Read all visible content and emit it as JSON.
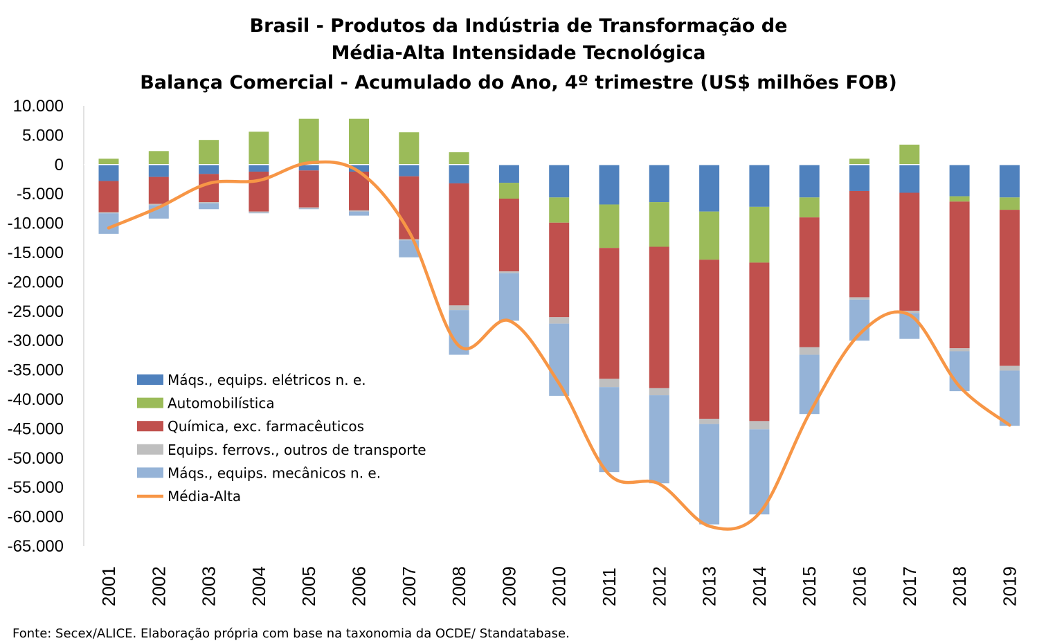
{
  "chart_data": {
    "type": "bar",
    "stacked": true,
    "title": [
      "Brasil - Produtos da Indústria de Transformação de",
      "Média-Alta Intensidade Tecnológica",
      "Balança Comercial - Acumulado do Ano, 4º trimestre (US$ milhões FOB)"
    ],
    "source": "Fonte: Secex/ALICE. Elaboração própria com base na taxonomia da OCDE/ Standatabase.",
    "categories": [
      "2001",
      "2002",
      "2003",
      "2004",
      "2005",
      "2006",
      "2007",
      "2008",
      "2009",
      "2010",
      "2011",
      "2012",
      "2013",
      "2014",
      "2015",
      "2016",
      "2017",
      "2018",
      "2019"
    ],
    "ylim": [
      -65000,
      10000
    ],
    "yticks": [
      {
        "value": 10000,
        "label": "10.000"
      },
      {
        "value": 5000,
        "label": "5.000"
      },
      {
        "value": 0,
        "label": "0"
      },
      {
        "value": -5000,
        "label": "-5.000"
      },
      {
        "value": -10000,
        "label": "-10.000"
      },
      {
        "value": -15000,
        "label": "-15.000"
      },
      {
        "value": -20000,
        "label": "-20.000"
      },
      {
        "value": -25000,
        "label": "-25.000"
      },
      {
        "value": -30000,
        "label": "-30.000"
      },
      {
        "value": -35000,
        "label": "-35.000"
      },
      {
        "value": -40000,
        "label": "-40.000"
      },
      {
        "value": -45000,
        "label": "-45.000"
      },
      {
        "value": -50000,
        "label": "-50.000"
      },
      {
        "value": -55000,
        "label": "-55.000"
      },
      {
        "value": -60000,
        "label": "-60.000"
      },
      {
        "value": -65000,
        "label": "-65.000"
      }
    ],
    "grid": false,
    "legend_position": "bottom-left",
    "series": [
      {
        "name": "Máqs., equips. elétricos n. e.",
        "type": "bar",
        "color": "#4f81bd",
        "values": [
          -2800,
          -2100,
          -1600,
          -1200,
          -1000,
          -1200,
          -2000,
          -3200,
          -3100,
          -5600,
          -6800,
          -6400,
          -8000,
          -7200,
          -5600,
          -4500,
          -4800,
          -5400,
          -5600
        ]
      },
      {
        "name": "Automobilística",
        "type": "bar",
        "color": "#9bbb59",
        "values": [
          1000,
          2300,
          4200,
          5600,
          7800,
          7800,
          5500,
          2100,
          -2700,
          -4300,
          -7400,
          -7600,
          -8200,
          -9500,
          -3400,
          1000,
          3400,
          -900,
          -2100
        ]
      },
      {
        "name": "Química, exc. farmacêuticos",
        "type": "bar",
        "color": "#c0504d",
        "values": [
          -5300,
          -4600,
          -4800,
          -6800,
          -6300,
          -6600,
          -10700,
          -20800,
          -12400,
          -16100,
          -22300,
          -24100,
          -27100,
          -27000,
          -22100,
          -18100,
          -20100,
          -25000,
          -26600
        ]
      },
      {
        "name": "Equips. ferrovs., outros de transporte",
        "type": "bar",
        "color": "#bfbfbf",
        "values": [
          -200,
          -200,
          -200,
          -200,
          -200,
          -200,
          -200,
          -800,
          -300,
          -1100,
          -1400,
          -1200,
          -900,
          -1400,
          -1300,
          -400,
          -400,
          -500,
          -800
        ]
      },
      {
        "name": "Máqs., equips. mecânicos  n. e.",
        "type": "bar",
        "color": "#95b3d7",
        "values": [
          -3500,
          -2300,
          -1000,
          -100,
          -100,
          -700,
          -2900,
          -7600,
          -8100,
          -12300,
          -14500,
          -15000,
          -17100,
          -14500,
          -10100,
          -7000,
          -4400,
          -6800,
          -9400
        ]
      },
      {
        "name": "Média-Alta",
        "type": "line",
        "color": "#f79646",
        "values": [
          -10800,
          -7300,
          -3200,
          -2700,
          300,
          -1200,
          -11400,
          -30900,
          -26600,
          -37300,
          -52800,
          -54400,
          -61600,
          -59400,
          -42400,
          -28900,
          -25600,
          -37800,
          -44400
        ]
      }
    ]
  }
}
